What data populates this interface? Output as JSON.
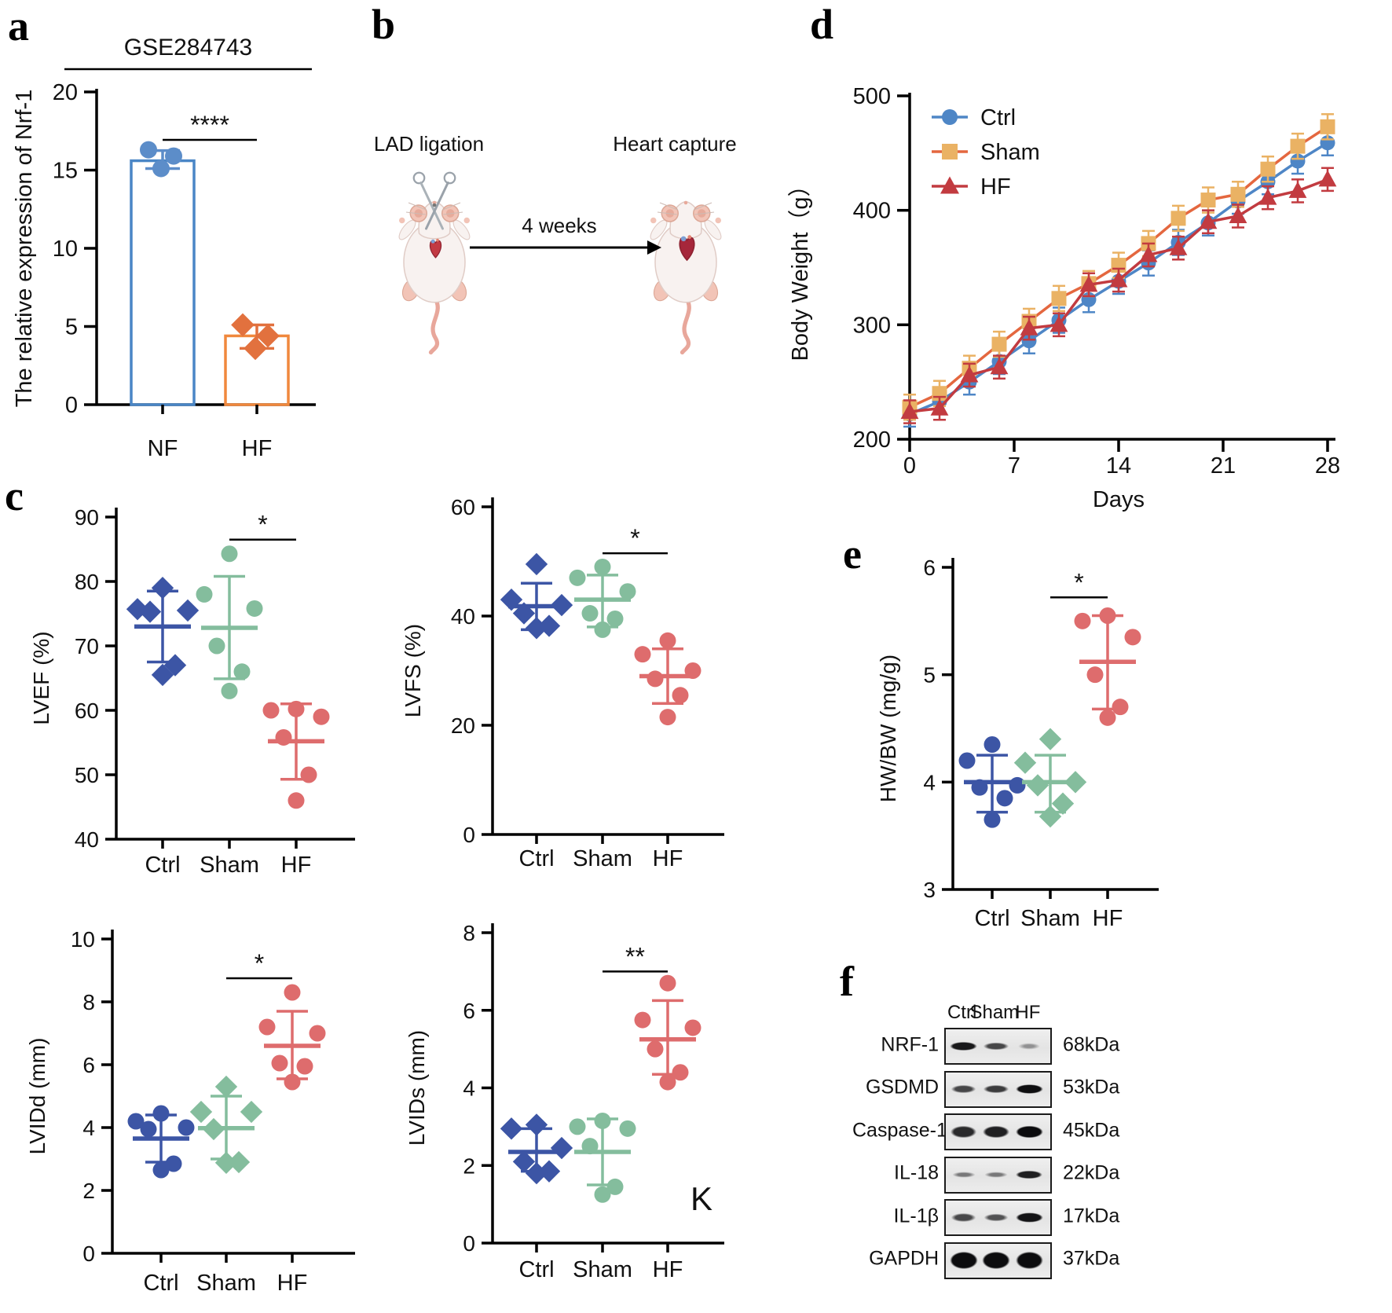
{
  "panel_labels": {
    "a": "a",
    "b": "b",
    "c": "c",
    "d": "d",
    "e": "e",
    "f": "f"
  },
  "colors": {
    "nf_bar": "#4A86C6",
    "nf_point": "#5C8DC9",
    "hf_bar": "#F0883D",
    "hf_point": "#E2713E",
    "ctrl_blue": "#3C55A5",
    "sham_green": "#84BD9D",
    "hf_salmon": "#DE6C6D",
    "bw_ctrl": "#4E86C6",
    "bw_sham_marker": "#EAB264",
    "bw_sham_line": "#E4673F",
    "bw_hf": "#C23B40",
    "axis_black": "#000000"
  },
  "panel_b": {
    "left_label": "LAD ligation",
    "arrow_label": "4 weeks",
    "right_label": "Heart capture"
  },
  "western_blot": {
    "lanes": [
      "Ctrl",
      "Sham",
      "HF"
    ],
    "rows": [
      {
        "protein": "NRF-1",
        "kda": "68kDa",
        "band_h": 14,
        "intensities": [
          0.88,
          0.62,
          0.18
        ]
      },
      {
        "protein": "GSDMD",
        "kda": "53kDa",
        "band_h": 15,
        "intensities": [
          0.62,
          0.68,
          0.95
        ]
      },
      {
        "protein": "Caspase-1",
        "kda": "45kDa",
        "band_h": 20,
        "intensities": [
          0.78,
          0.85,
          0.97
        ]
      },
      {
        "protein": "IL-18",
        "kda": "22kDa",
        "band_h": 13,
        "intensities": [
          0.32,
          0.32,
          0.85
        ]
      },
      {
        "protein": "IL-1β",
        "kda": "17kDa",
        "band_h": 15,
        "intensities": [
          0.6,
          0.55,
          0.92
        ]
      },
      {
        "protein": "GAPDH",
        "kda": "37kDa",
        "band_h": 28,
        "intensities": [
          1.0,
          1.0,
          0.97
        ]
      }
    ]
  },
  "chart_data": [
    {
      "id": "nrf1",
      "panel": "a",
      "type": "bar",
      "title": "GSE284743",
      "ylabel": "The relative expression of Nrf-1",
      "ylim": [
        0,
        20
      ],
      "yticks": [
        0,
        5,
        10,
        15,
        20
      ],
      "categories": [
        "NF",
        "HF"
      ],
      "values": [
        15.6,
        4.4
      ],
      "bars": [
        {
          "label": "NF",
          "value": 15.6,
          "err": [
            15.1,
            16.25
          ],
          "points": [
            16.3,
            15.9,
            15.1
          ],
          "marker": "circle",
          "color": "#4A86C6",
          "point_color": "#5C8DC9"
        },
        {
          "label": "HF",
          "value": 4.4,
          "err": [
            3.6,
            5.1
          ],
          "points": [
            5.1,
            4.4,
            3.6
          ],
          "marker": "diamond",
          "color": "#F0883D",
          "point_color": "#E2713E"
        }
      ],
      "significance": "****"
    },
    {
      "id": "bodyweight",
      "panel": "d",
      "type": "line",
      "ylabel": "Body Weight（g）",
      "xlabel": "Days",
      "ylim": [
        200,
        500
      ],
      "yticks": [
        200,
        300,
        400,
        500
      ],
      "xlim": [
        0,
        28
      ],
      "xticks": [
        0,
        7,
        14,
        21,
        28
      ],
      "x": [
        0,
        2,
        4,
        6,
        8,
        10,
        12,
        14,
        16,
        18,
        20,
        22,
        24,
        26,
        28
      ],
      "series": [
        {
          "name": "Ctrl",
          "marker": "circle",
          "marker_color": "#4E86C6",
          "line_color": "#4E86C6",
          "err": 11,
          "values": [
            222,
            233,
            250,
            268,
            286,
            304,
            322,
            338,
            354,
            372,
            389,
            408,
            425,
            443,
            459
          ]
        },
        {
          "name": "Sham",
          "marker": "square",
          "marker_color": "#EAB264",
          "line_color": "#E4673F",
          "err": 11,
          "values": [
            228,
            240,
            262,
            283,
            303,
            323,
            336,
            352,
            371,
            393,
            409,
            414,
            436,
            456,
            473
          ]
        },
        {
          "name": "HF",
          "marker": "triangle",
          "marker_color": "#C23B40",
          "line_color": "#C23B40",
          "err": 10,
          "values": [
            224,
            227,
            256,
            263,
            297,
            300,
            335,
            339,
            361,
            367,
            390,
            395,
            411,
            417,
            427
          ]
        }
      ],
      "legend_position": "top-left"
    },
    {
      "id": "lvef",
      "panel": "c",
      "type": "scatter",
      "ylabel": "LVEF (%)",
      "ylim": [
        40,
        90
      ],
      "yticks": [
        40,
        50,
        60,
        70,
        80,
        90
      ],
      "groups": [
        {
          "label": "Ctrl",
          "marker": "diamond",
          "color": "#3C55A5",
          "values": [
            79,
            75.7,
            75.5,
            75.3,
            67,
            65.5
          ],
          "mean": 73,
          "err": [
            67.5,
            78.5
          ]
        },
        {
          "label": "Sham",
          "marker": "circle",
          "color": "#84BD9D",
          "values": [
            84.3,
            78,
            75.8,
            70,
            66,
            63
          ],
          "mean": 72.8,
          "err": [
            64.9,
            80.8
          ]
        },
        {
          "label": "HF",
          "marker": "circle",
          "color": "#DE6C6D",
          "values": [
            60.2,
            60,
            59,
            55.8,
            50,
            46
          ],
          "mean": 55.2,
          "err": [
            49.3,
            61
          ]
        }
      ],
      "significance": {
        "label": "*",
        "between": [
          1,
          2
        ],
        "y": 86.5
      }
    },
    {
      "id": "lvfs",
      "panel": "c",
      "type": "scatter",
      "ylabel": "LVFS (%)",
      "ylim": [
        0,
        60
      ],
      "yticks": [
        0,
        20,
        40,
        60
      ],
      "groups": [
        {
          "label": "Ctrl",
          "marker": "diamond",
          "color": "#3C55A5",
          "values": [
            49.5,
            43,
            42,
            40.5,
            38.2,
            37.8
          ],
          "mean": 41.8,
          "err": [
            37.5,
            46
          ]
        },
        {
          "label": "Sham",
          "marker": "circle",
          "color": "#84BD9D",
          "values": [
            49,
            47,
            44.5,
            40.5,
            39.5,
            37.5
          ],
          "mean": 43,
          "err": [
            38,
            47.5
          ]
        },
        {
          "label": "HF",
          "marker": "circle",
          "color": "#DE6C6D",
          "values": [
            35.5,
            33,
            30,
            28.5,
            25.5,
            21.5
          ],
          "mean": 29,
          "err": [
            24,
            34
          ]
        }
      ],
      "significance": {
        "label": "*",
        "between": [
          1,
          2
        ],
        "y": 51.5
      }
    },
    {
      "id": "lvidd",
      "panel": "c",
      "type": "scatter",
      "ylabel": "LVIDd (mm)",
      "ylim": [
        0,
        10
      ],
      "yticks": [
        0,
        2,
        4,
        6,
        8,
        10
      ],
      "groups": [
        {
          "label": "Ctrl",
          "marker": "circle",
          "color": "#3C55A5",
          "values": [
            4.45,
            4.2,
            4.0,
            3.95,
            2.85,
            2.65
          ],
          "mean": 3.65,
          "err": [
            2.9,
            4.4
          ]
        },
        {
          "label": "Sham",
          "marker": "diamond",
          "color": "#84BD9D",
          "values": [
            5.3,
            4.5,
            4.5,
            3.95,
            2.9,
            2.88
          ],
          "mean": 3.98,
          "err": [
            3.0,
            5.0
          ]
        },
        {
          "label": "HF",
          "marker": "circle",
          "color": "#DE6C6D",
          "values": [
            8.3,
            7.2,
            7.0,
            6.05,
            5.95,
            5.45
          ],
          "mean": 6.6,
          "err": [
            5.55,
            7.7
          ]
        }
      ],
      "significance": {
        "label": "*",
        "between": [
          1,
          2
        ],
        "y": 8.75
      }
    },
    {
      "id": "lvids",
      "panel": "c",
      "type": "scatter",
      "ylabel": "LVIDs (mm)",
      "ylim": [
        0,
        8
      ],
      "yticks": [
        0,
        2,
        4,
        6,
        8
      ],
      "groups": [
        {
          "label": "Ctrl",
          "marker": "diamond",
          "color": "#3C55A5",
          "values": [
            3.05,
            2.95,
            2.45,
            2.1,
            1.85,
            1.8
          ],
          "mean": 2.35,
          "err": [
            1.85,
            2.95
          ]
        },
        {
          "label": "Sham",
          "marker": "circle",
          "color": "#84BD9D",
          "values": [
            3.15,
            3.0,
            2.95,
            2.5,
            1.45,
            1.25
          ],
          "mean": 2.35,
          "err": [
            1.5,
            3.2
          ]
        },
        {
          "label": "HF",
          "marker": "circle",
          "color": "#DE6C6D",
          "values": [
            6.7,
            5.75,
            5.55,
            5.0,
            4.4,
            4.15
          ],
          "mean": 5.25,
          "err": [
            4.35,
            6.25
          ]
        }
      ],
      "significance": {
        "label": "**",
        "between": [
          1,
          2
        ],
        "y": 7.0
      },
      "stray_label": "K"
    },
    {
      "id": "hwbw",
      "panel": "e",
      "type": "scatter",
      "ylabel": "HW/BW (mg/g)",
      "ylim": [
        3,
        6
      ],
      "yticks": [
        3,
        4,
        5,
        6
      ],
      "groups": [
        {
          "label": "Ctrl",
          "marker": "circle",
          "color": "#3C55A5",
          "values": [
            4.35,
            4.2,
            3.97,
            3.95,
            3.85,
            3.65
          ],
          "mean": 4.0,
          "err": [
            3.72,
            4.25
          ]
        },
        {
          "label": "Sham",
          "marker": "diamond",
          "color": "#84BD9D",
          "values": [
            4.4,
            4.18,
            4.0,
            3.97,
            3.8,
            3.68
          ],
          "mean": 4.0,
          "err": [
            3.72,
            4.25
          ]
        },
        {
          "label": "HF",
          "marker": "circle",
          "color": "#DE6C6D",
          "values": [
            5.55,
            5.5,
            5.35,
            5.0,
            4.7,
            4.6
          ],
          "mean": 5.12,
          "err": [
            4.68,
            5.55
          ]
        }
      ],
      "significance": {
        "label": "*",
        "between": [
          1,
          2
        ],
        "y": 5.72
      }
    }
  ]
}
